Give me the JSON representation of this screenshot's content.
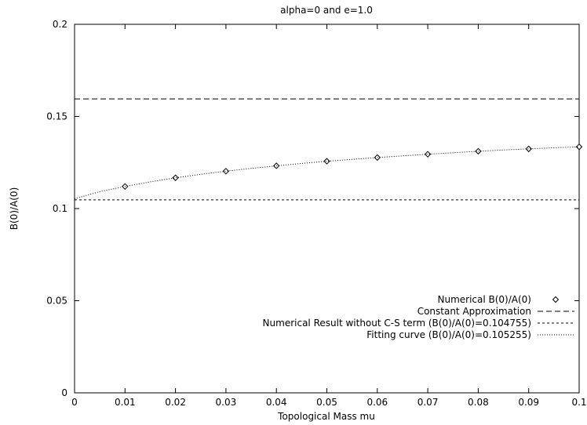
{
  "chart_data": {
    "type": "line",
    "title": "alpha=0 and e=1.0",
    "xlabel": "Topological Mass mu",
    "ylabel": "B(0)/A(0)",
    "xlim": [
      0,
      0.1
    ],
    "ylim": [
      0,
      0.2
    ],
    "x_ticks": [
      "0",
      "0.01",
      "0.02",
      "0.03",
      "0.04",
      "0.05",
      "0.06",
      "0.07",
      "0.08",
      "0.09",
      "0.1"
    ],
    "y_ticks": [
      "0",
      "0.05",
      "0.1",
      "0.15",
      "0.2"
    ],
    "grid": false,
    "legend_position": "bottom-right",
    "series": [
      {
        "name": "Numerical B(0)/A(0)",
        "style": "points",
        "marker": "diamond",
        "x": [
          0.01,
          0.02,
          0.03,
          0.04,
          0.05,
          0.06,
          0.07,
          0.08,
          0.09,
          0.1
        ],
        "y": [
          0.112,
          0.1167,
          0.1203,
          0.1232,
          0.1257,
          0.1277,
          0.1295,
          0.1311,
          0.1324,
          0.1335
        ]
      },
      {
        "name": "Constant Approximation",
        "style": "dashed",
        "x": [
          0,
          0.1
        ],
        "y": [
          0.1595,
          0.1595
        ]
      },
      {
        "name": "Numerical Result without C-S term (B(0)/A(0)=0.104755)",
        "style": "short-dashed",
        "x": [
          0,
          0.1
        ],
        "y": [
          0.104755,
          0.104755
        ]
      },
      {
        "name": "Fitting curve (B(0)/A(0)=0.105255)",
        "style": "dotted",
        "x": [
          0,
          0.005,
          0.01,
          0.015,
          0.02,
          0.025,
          0.03,
          0.035,
          0.04,
          0.045,
          0.05,
          0.055,
          0.06,
          0.065,
          0.07,
          0.075,
          0.08,
          0.085,
          0.09,
          0.095,
          0.1
        ],
        "y": [
          0.1053,
          0.1092,
          0.112,
          0.1145,
          0.1167,
          0.1186,
          0.1203,
          0.1218,
          0.1232,
          0.1245,
          0.1257,
          0.1267,
          0.1277,
          0.1286,
          0.1295,
          0.1303,
          0.1311,
          0.1318,
          0.1324,
          0.133,
          0.1335
        ]
      }
    ]
  }
}
